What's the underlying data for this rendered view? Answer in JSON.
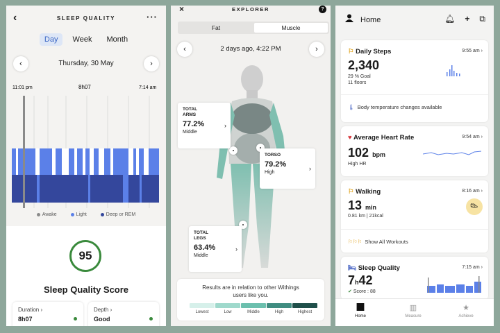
{
  "sleep": {
    "title": "SLEEP QUALITY",
    "tabs": [
      "Day",
      "Week",
      "Month"
    ],
    "date": "Thursday, 30 May",
    "start_time": "11:01 pm",
    "duration_label": "8h07",
    "end_time": "7:14 am",
    "legend": [
      "Awake",
      "Light",
      "Deep or REM"
    ],
    "score": "95",
    "score_title": "Sleep Quality Score",
    "cards": [
      {
        "label": "Duration",
        "value": "8h07"
      },
      {
        "label": "Depth",
        "value": "Good"
      }
    ],
    "colors": {
      "awake": "#8a8a8a",
      "light": "#5b80e8",
      "deep": "#34479c"
    }
  },
  "explorer": {
    "title": "EXPLORER",
    "tabs": [
      "Fat",
      "Muscle"
    ],
    "date": "2 days ago, 4:22 PM",
    "arms": {
      "label1": "TOTAL",
      "label2": "ARMS",
      "value": "77.2%",
      "level": "Middle"
    },
    "torso": {
      "label1": "TORSO",
      "value": "79.2%",
      "level": "High"
    },
    "legs": {
      "label1": "TOTAL",
      "label2": "LEGS",
      "value": "63.4%",
      "level": "Middle"
    },
    "footer_line1": "Results are in relation to other Withings",
    "footer_line2": "users like you.",
    "scale": [
      "Lowest",
      "Low",
      "Middle",
      "High",
      "Highest"
    ],
    "scale_colors": [
      "#d6f0ea",
      "#9fd9cc",
      "#6bbfad",
      "#3f8c80",
      "#1f4f4a"
    ]
  },
  "home": {
    "title": "Home",
    "steps": {
      "title": "Daily Steps",
      "time": "9:55 am",
      "value": "2,340",
      "goal": "29 % Goal",
      "floors": "11 floors",
      "note": "Body temperature changes available"
    },
    "heart": {
      "title": "Average Heart Rate",
      "time": "9:54 am",
      "value": "102",
      "unit": "bpm",
      "status": "High HR"
    },
    "walking": {
      "title": "Walking",
      "time": "8:16 am",
      "value": "13",
      "unit": "min",
      "detail": "0.81 km | 21kcal",
      "link": "Show All Workouts"
    },
    "sleep": {
      "title": "Sleep Quality",
      "time": "7:15 am",
      "value_h": "7",
      "value_h_unit": "h",
      "value_m": "42",
      "score": "Score : 88"
    },
    "nav": [
      "Home",
      "Measure",
      "Achieve"
    ]
  }
}
